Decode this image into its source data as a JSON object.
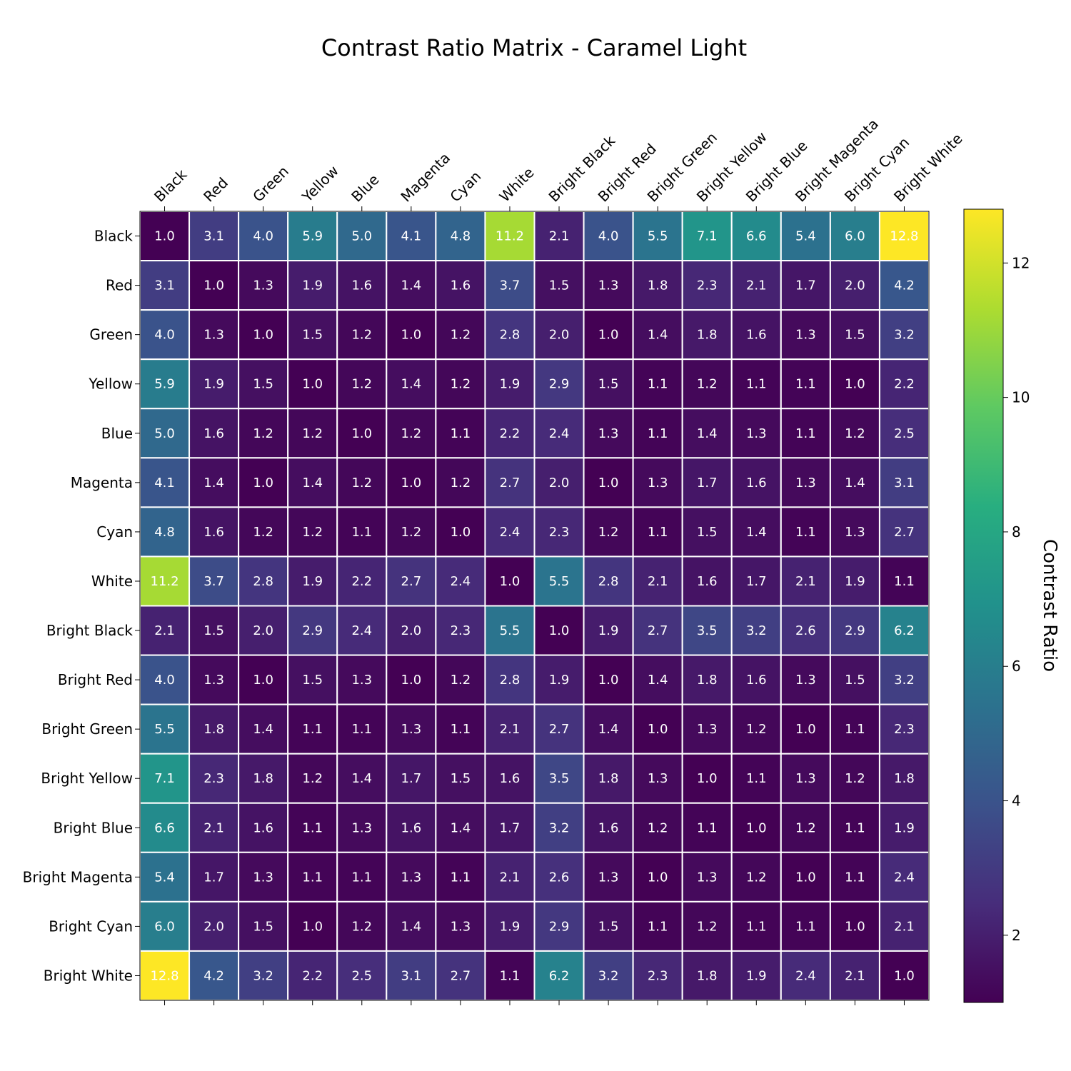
{
  "chart_data": {
    "type": "heatmap",
    "title": "Contrast Ratio Matrix - Caramel Light",
    "x_labels": [
      "Black",
      "Red",
      "Green",
      "Yellow",
      "Blue",
      "Magenta",
      "Cyan",
      "White",
      "Bright Black",
      "Bright Red",
      "Bright Green",
      "Bright Yellow",
      "Bright Blue",
      "Bright Magenta",
      "Bright Cyan",
      "Bright White"
    ],
    "y_labels": [
      "Black",
      "Red",
      "Green",
      "Yellow",
      "Blue",
      "Magenta",
      "Cyan",
      "White",
      "Bright Black",
      "Bright Red",
      "Bright Green",
      "Bright Yellow",
      "Bright Blue",
      "Bright Magenta",
      "Bright Cyan",
      "Bright White"
    ],
    "values": [
      [
        1.0,
        3.1,
        4.0,
        5.9,
        5.0,
        4.1,
        4.8,
        11.2,
        2.1,
        4.0,
        5.5,
        7.1,
        6.6,
        5.4,
        6.0,
        12.8
      ],
      [
        3.1,
        1.0,
        1.3,
        1.9,
        1.6,
        1.4,
        1.6,
        3.7,
        1.5,
        1.3,
        1.8,
        2.3,
        2.1,
        1.7,
        2.0,
        4.2
      ],
      [
        4.0,
        1.3,
        1.0,
        1.5,
        1.2,
        1.0,
        1.2,
        2.8,
        2.0,
        1.0,
        1.4,
        1.8,
        1.6,
        1.3,
        1.5,
        3.2
      ],
      [
        5.9,
        1.9,
        1.5,
        1.0,
        1.2,
        1.4,
        1.2,
        1.9,
        2.9,
        1.5,
        1.1,
        1.2,
        1.1,
        1.1,
        1.0,
        2.2
      ],
      [
        5.0,
        1.6,
        1.2,
        1.2,
        1.0,
        1.2,
        1.1,
        2.2,
        2.4,
        1.3,
        1.1,
        1.4,
        1.3,
        1.1,
        1.2,
        2.5
      ],
      [
        4.1,
        1.4,
        1.0,
        1.4,
        1.2,
        1.0,
        1.2,
        2.7,
        2.0,
        1.0,
        1.3,
        1.7,
        1.6,
        1.3,
        1.4,
        3.1
      ],
      [
        4.8,
        1.6,
        1.2,
        1.2,
        1.1,
        1.2,
        1.0,
        2.4,
        2.3,
        1.2,
        1.1,
        1.5,
        1.4,
        1.1,
        1.3,
        2.7
      ],
      [
        11.2,
        3.7,
        2.8,
        1.9,
        2.2,
        2.7,
        2.4,
        1.0,
        5.5,
        2.8,
        2.1,
        1.6,
        1.7,
        2.1,
        1.9,
        1.1
      ],
      [
        2.1,
        1.5,
        2.0,
        2.9,
        2.4,
        2.0,
        2.3,
        5.5,
        1.0,
        1.9,
        2.7,
        3.5,
        3.2,
        2.6,
        2.9,
        6.2
      ],
      [
        4.0,
        1.3,
        1.0,
        1.5,
        1.3,
        1.0,
        1.2,
        2.8,
        1.9,
        1.0,
        1.4,
        1.8,
        1.6,
        1.3,
        1.5,
        3.2
      ],
      [
        5.5,
        1.8,
        1.4,
        1.1,
        1.1,
        1.3,
        1.1,
        2.1,
        2.7,
        1.4,
        1.0,
        1.3,
        1.2,
        1.0,
        1.1,
        2.3
      ],
      [
        7.1,
        2.3,
        1.8,
        1.2,
        1.4,
        1.7,
        1.5,
        1.6,
        3.5,
        1.8,
        1.3,
        1.0,
        1.1,
        1.3,
        1.2,
        1.8
      ],
      [
        6.6,
        2.1,
        1.6,
        1.1,
        1.3,
        1.6,
        1.4,
        1.7,
        3.2,
        1.6,
        1.2,
        1.1,
        1.0,
        1.2,
        1.1,
        1.9
      ],
      [
        5.4,
        1.7,
        1.3,
        1.1,
        1.1,
        1.3,
        1.1,
        2.1,
        2.6,
        1.3,
        1.0,
        1.3,
        1.2,
        1.0,
        1.1,
        2.4
      ],
      [
        6.0,
        2.0,
        1.5,
        1.0,
        1.2,
        1.4,
        1.3,
        1.9,
        2.9,
        1.5,
        1.1,
        1.2,
        1.1,
        1.1,
        1.0,
        2.1
      ],
      [
        12.8,
        4.2,
        3.2,
        2.2,
        2.5,
        3.1,
        2.7,
        1.1,
        6.2,
        3.2,
        2.3,
        1.8,
        1.9,
        2.4,
        2.1,
        1.0
      ]
    ],
    "colormap": "viridis",
    "color_range": [
      1.0,
      12.8
    ],
    "colorbar": {
      "label": "Contrast Ratio",
      "ticks": [
        "2",
        "4",
        "6",
        "8",
        "10",
        "12"
      ],
      "tick_values": [
        2,
        4,
        6,
        8,
        10,
        12
      ]
    },
    "x_axis_position": "top",
    "cell_borders": "white",
    "grid": false,
    "legend": "none"
  }
}
